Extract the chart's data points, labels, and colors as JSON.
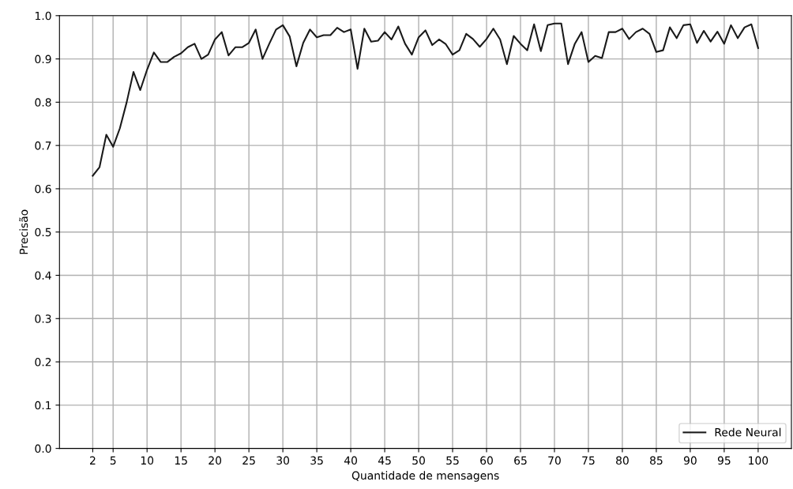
{
  "chart_data": {
    "type": "line",
    "xlabel": "Quantidade de mensagens",
    "ylabel": "Precisão",
    "x": [
      2,
      3,
      4,
      5,
      6,
      7,
      8,
      9,
      10,
      11,
      12,
      13,
      14,
      15,
      16,
      17,
      18,
      19,
      20,
      21,
      22,
      23,
      24,
      25,
      26,
      27,
      28,
      29,
      30,
      31,
      32,
      33,
      34,
      35,
      36,
      37,
      38,
      39,
      40,
      41,
      42,
      43,
      44,
      45,
      46,
      47,
      48,
      49,
      50,
      51,
      52,
      53,
      54,
      55,
      56,
      57,
      58,
      59,
      60,
      61,
      62,
      63,
      64,
      65,
      66,
      67,
      68,
      69,
      70,
      71,
      72,
      73,
      74,
      75,
      76,
      77,
      78,
      79,
      80,
      81,
      82,
      83,
      84,
      85,
      86,
      87,
      88,
      89,
      90,
      91,
      92,
      93,
      94,
      95,
      96,
      97,
      98,
      99,
      100
    ],
    "series": [
      {
        "name": "Rede Neural",
        "color": "#1a1a1a",
        "values": [
          0.63,
          0.65,
          0.725,
          0.697,
          0.74,
          0.8,
          0.87,
          0.828,
          0.875,
          0.915,
          0.893,
          0.893,
          0.905,
          0.913,
          0.927,
          0.935,
          0.9,
          0.91,
          0.945,
          0.962,
          0.908,
          0.927,
          0.927,
          0.937,
          0.968,
          0.9,
          0.935,
          0.968,
          0.978,
          0.952,
          0.883,
          0.937,
          0.968,
          0.95,
          0.955,
          0.955,
          0.972,
          0.962,
          0.968,
          0.877,
          0.97,
          0.94,
          0.942,
          0.962,
          0.945,
          0.975,
          0.935,
          0.91,
          0.95,
          0.966,
          0.932,
          0.945,
          0.934,
          0.91,
          0.92,
          0.958,
          0.946,
          0.928,
          0.946,
          0.97,
          0.945,
          0.888,
          0.953,
          0.935,
          0.92,
          0.98,
          0.918,
          0.978,
          0.982,
          0.982,
          0.888,
          0.935,
          0.962,
          0.893,
          0.907,
          0.902,
          0.962,
          0.962,
          0.97,
          0.946,
          0.962,
          0.97,
          0.958,
          0.916,
          0.92,
          0.973,
          0.948,
          0.978,
          0.98,
          0.937,
          0.965,
          0.94,
          0.963,
          0.935,
          0.978,
          0.948,
          0.973,
          0.98,
          0.925
        ]
      }
    ],
    "xlim": [
      -2.9,
      104.9
    ],
    "xticks": [
      2,
      5,
      10,
      15,
      20,
      25,
      30,
      35,
      40,
      45,
      50,
      55,
      60,
      65,
      70,
      75,
      80,
      85,
      90,
      95,
      100
    ],
    "ylim": [
      0,
      1
    ],
    "yticks": [
      {
        "value": 0,
        "label": "0.0"
      },
      0.1,
      0.2,
      0.3,
      0.4,
      0.5,
      0.6,
      0.7,
      0.8,
      0.9,
      {
        "value": 1,
        "label": "1.0"
      }
    ],
    "grid": true,
    "legend": "lower right",
    "marker": "none",
    "line_style": "solid"
  }
}
